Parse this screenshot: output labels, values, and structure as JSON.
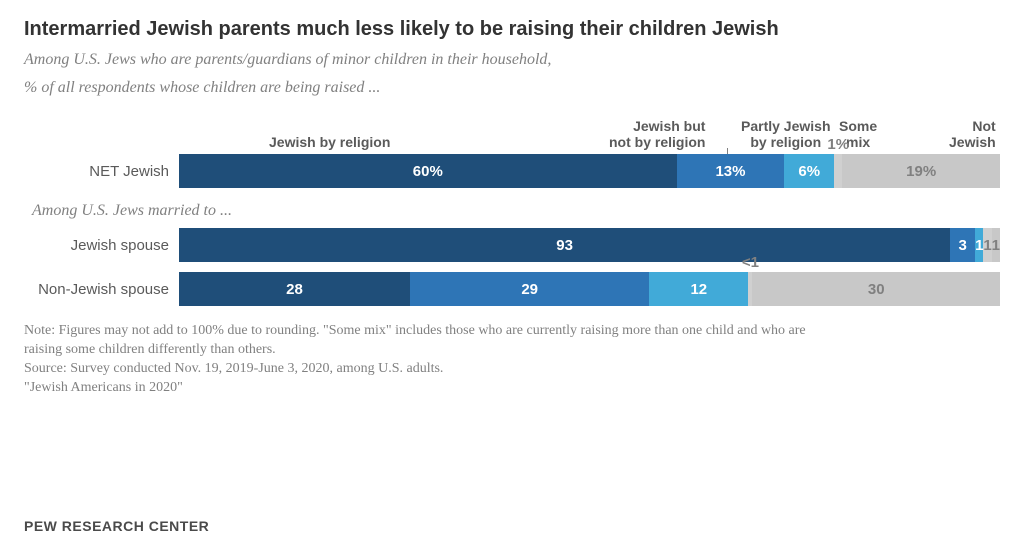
{
  "title": "Intermarried Jewish parents much less likely to be raising their children Jewish",
  "subtitle_l1": "Among U.S. Jews who are parents/guardians of minor children in their household,",
  "subtitle_l2": "% of all respondents whose children are being raised ...",
  "section2_label": "Among U.S. Jews married to ...",
  "legend": {
    "c0": "Jewish by religion",
    "c1": "Jewish but\nnot by religion",
    "c2": "Partly Jewish\nby religion",
    "c3": "Some\nmix",
    "c4": "Not\nJewish"
  },
  "colors": {
    "c0": "#1f4e79",
    "c1": "#2e75b6",
    "c2": "#41aad8",
    "c3": "#d0d0d0",
    "c4": "#c8c8c8",
    "text_light": "#808080"
  },
  "font": {
    "title_size": 20,
    "subtitle_size": 16,
    "legend_size": 14,
    "row_label_size": 15,
    "seg_size": 15,
    "note_size": 14,
    "footer_size": 14
  },
  "rows": {
    "net": {
      "label": "NET Jewish",
      "segs": [
        {
          "v": 60,
          "t": "60%",
          "color": "c0",
          "txt": "dark"
        },
        {
          "v": 13,
          "t": "13%",
          "color": "c1",
          "txt": "dark"
        },
        {
          "v": 6,
          "t": "6%",
          "color": "c2",
          "txt": "dark"
        },
        {
          "v": 1,
          "t": "1%",
          "color": "c3",
          "txt": "light",
          "ext": true
        },
        {
          "v": 19,
          "t": "19%",
          "color": "c4",
          "txt": "light"
        }
      ]
    },
    "js": {
      "label": "Jewish spouse",
      "segs": [
        {
          "v": 93,
          "t": "93",
          "color": "c0",
          "txt": "dark"
        },
        {
          "v": 3,
          "t": "3",
          "color": "c1",
          "txt": "dark"
        },
        {
          "v": 1,
          "t": "1",
          "color": "c2",
          "txt": "dark"
        },
        {
          "v": 1,
          "t": "1",
          "color": "c3",
          "txt": "light"
        },
        {
          "v": 1,
          "t": "1",
          "color": "c4",
          "txt": "light"
        }
      ]
    },
    "njs": {
      "label": "Non-Jewish spouse",
      "segs": [
        {
          "v": 28,
          "t": "28",
          "color": "c0",
          "txt": "dark"
        },
        {
          "v": 29,
          "t": "29",
          "color": "c1",
          "txt": "dark"
        },
        {
          "v": 12,
          "t": "12",
          "color": "c2",
          "txt": "dark"
        },
        {
          "v": 0.5,
          "t": "<1",
          "color": "c3",
          "txt": "light",
          "ext": true
        },
        {
          "v": 30,
          "t": "30",
          "color": "c4",
          "txt": "light"
        }
      ]
    }
  },
  "note_l1": "Note: Figures may not add to 100% due to rounding. \"Some mix\" includes those who are currently raising more than one child and who are",
  "note_l2": "raising some children differently than others.",
  "note_l3": "Source: Survey conducted Nov. 19, 2019-June 3, 2020, among U.S. adults.",
  "note_l4": "\"Jewish Americans in 2020\"",
  "footer": "PEW RESEARCH CENTER"
}
